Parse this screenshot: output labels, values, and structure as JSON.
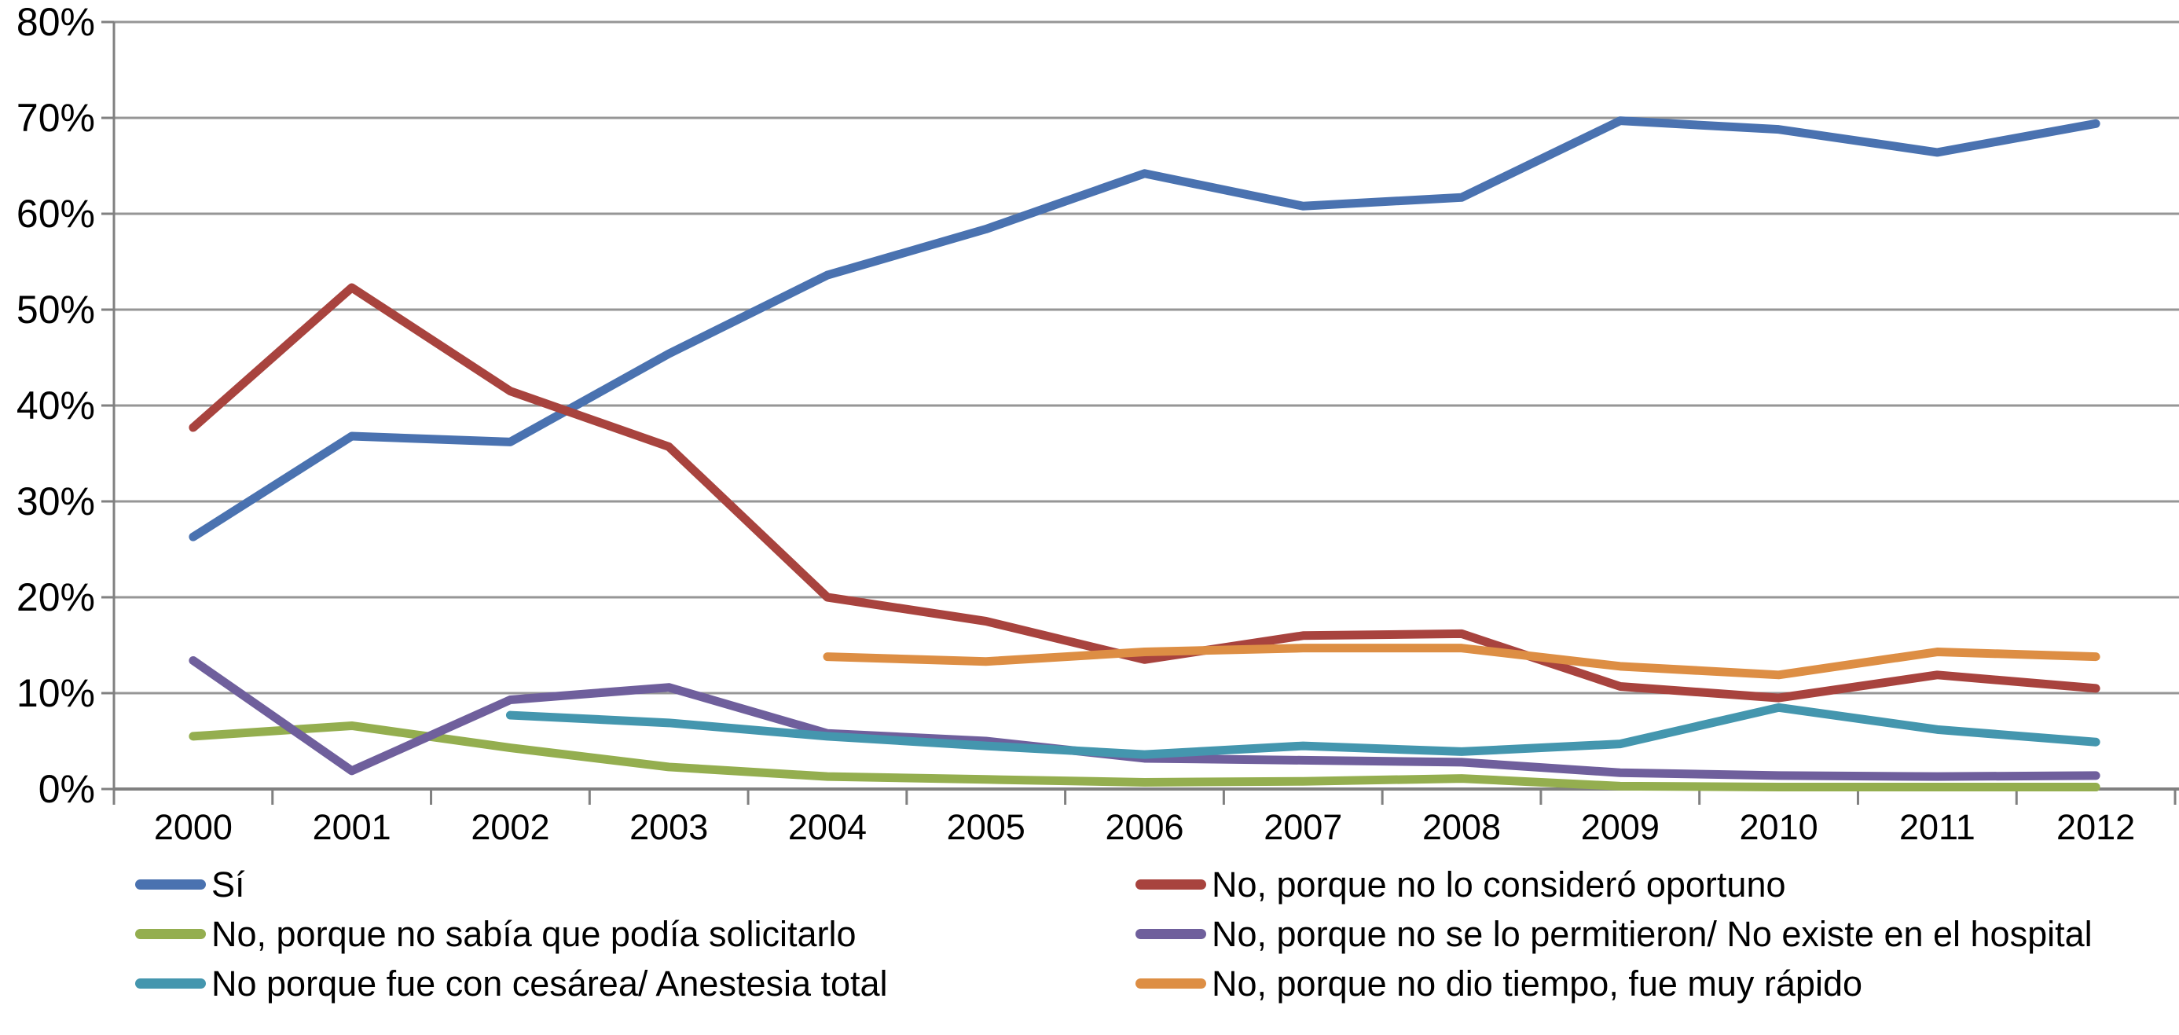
{
  "chart_data": {
    "type": "line",
    "title": "",
    "x_categories": [
      "2000",
      "2001",
      "2002",
      "2003",
      "2004",
      "2005",
      "2006",
      "2007",
      "2008",
      "2009",
      "2010",
      "2011",
      "2012"
    ],
    "y_axis": {
      "min": 0,
      "max": 80,
      "step": 10,
      "tick_labels": [
        "0%",
        "10%",
        "20%",
        "30%",
        "40%",
        "50%",
        "60%",
        "70%",
        "80%"
      ]
    },
    "grid": true,
    "legend_position": "bottom-two-columns",
    "gridline_color": "#969696",
    "axis_line_color": "#808080",
    "series": [
      {
        "id": "si",
        "name": "Sí",
        "color": "#4A72B0",
        "values": [
          26.3,
          36.8,
          36.2,
          45.4,
          53.6,
          58.4,
          64.2,
          60.8,
          61.7,
          69.7,
          68.8,
          66.4,
          69.4
        ]
      },
      {
        "id": "no-considero-oportuno",
        "name": "No, porque no lo consideró oportuno",
        "color": "#A8433E",
        "values": [
          37.7,
          52.3,
          41.5,
          35.7,
          20.0,
          17.5,
          13.5,
          16.0,
          16.2,
          10.7,
          9.5,
          11.9,
          10.5
        ]
      },
      {
        "id": "no-sabia-solicitarlo",
        "name": "No, porque no sabía que podía solicitarlo",
        "color": "#94AE4F",
        "values": [
          5.5,
          6.6,
          4.3,
          2.3,
          1.3,
          1.0,
          0.7,
          0.8,
          1.1,
          0.3,
          0.2,
          0.2,
          0.2
        ]
      },
      {
        "id": "no-permitieron-hospital",
        "name": "No, porque no se lo permitieron/ No existe en el hospital",
        "color": "#6F5F9C",
        "values": [
          13.4,
          1.9,
          9.3,
          10.6,
          5.8,
          5.0,
          3.2,
          3.0,
          2.8,
          1.7,
          1.4,
          1.3,
          1.4
        ]
      },
      {
        "id": "cesarea-anestesia-total",
        "name": "No porque fue con cesárea/ Anestesia total",
        "color": "#4496AE",
        "values": [
          null,
          null,
          7.7,
          6.9,
          5.5,
          4.5,
          3.6,
          4.5,
          3.9,
          4.7,
          8.5,
          6.2,
          4.9
        ]
      },
      {
        "id": "no-dio-tiempo",
        "name": "No, porque no dio tiempo, fue muy rápido",
        "color": "#DD8E44",
        "values": [
          null,
          null,
          null,
          null,
          13.8,
          13.3,
          14.3,
          14.7,
          14.7,
          12.8,
          11.9,
          14.3,
          13.8
        ]
      }
    ]
  }
}
